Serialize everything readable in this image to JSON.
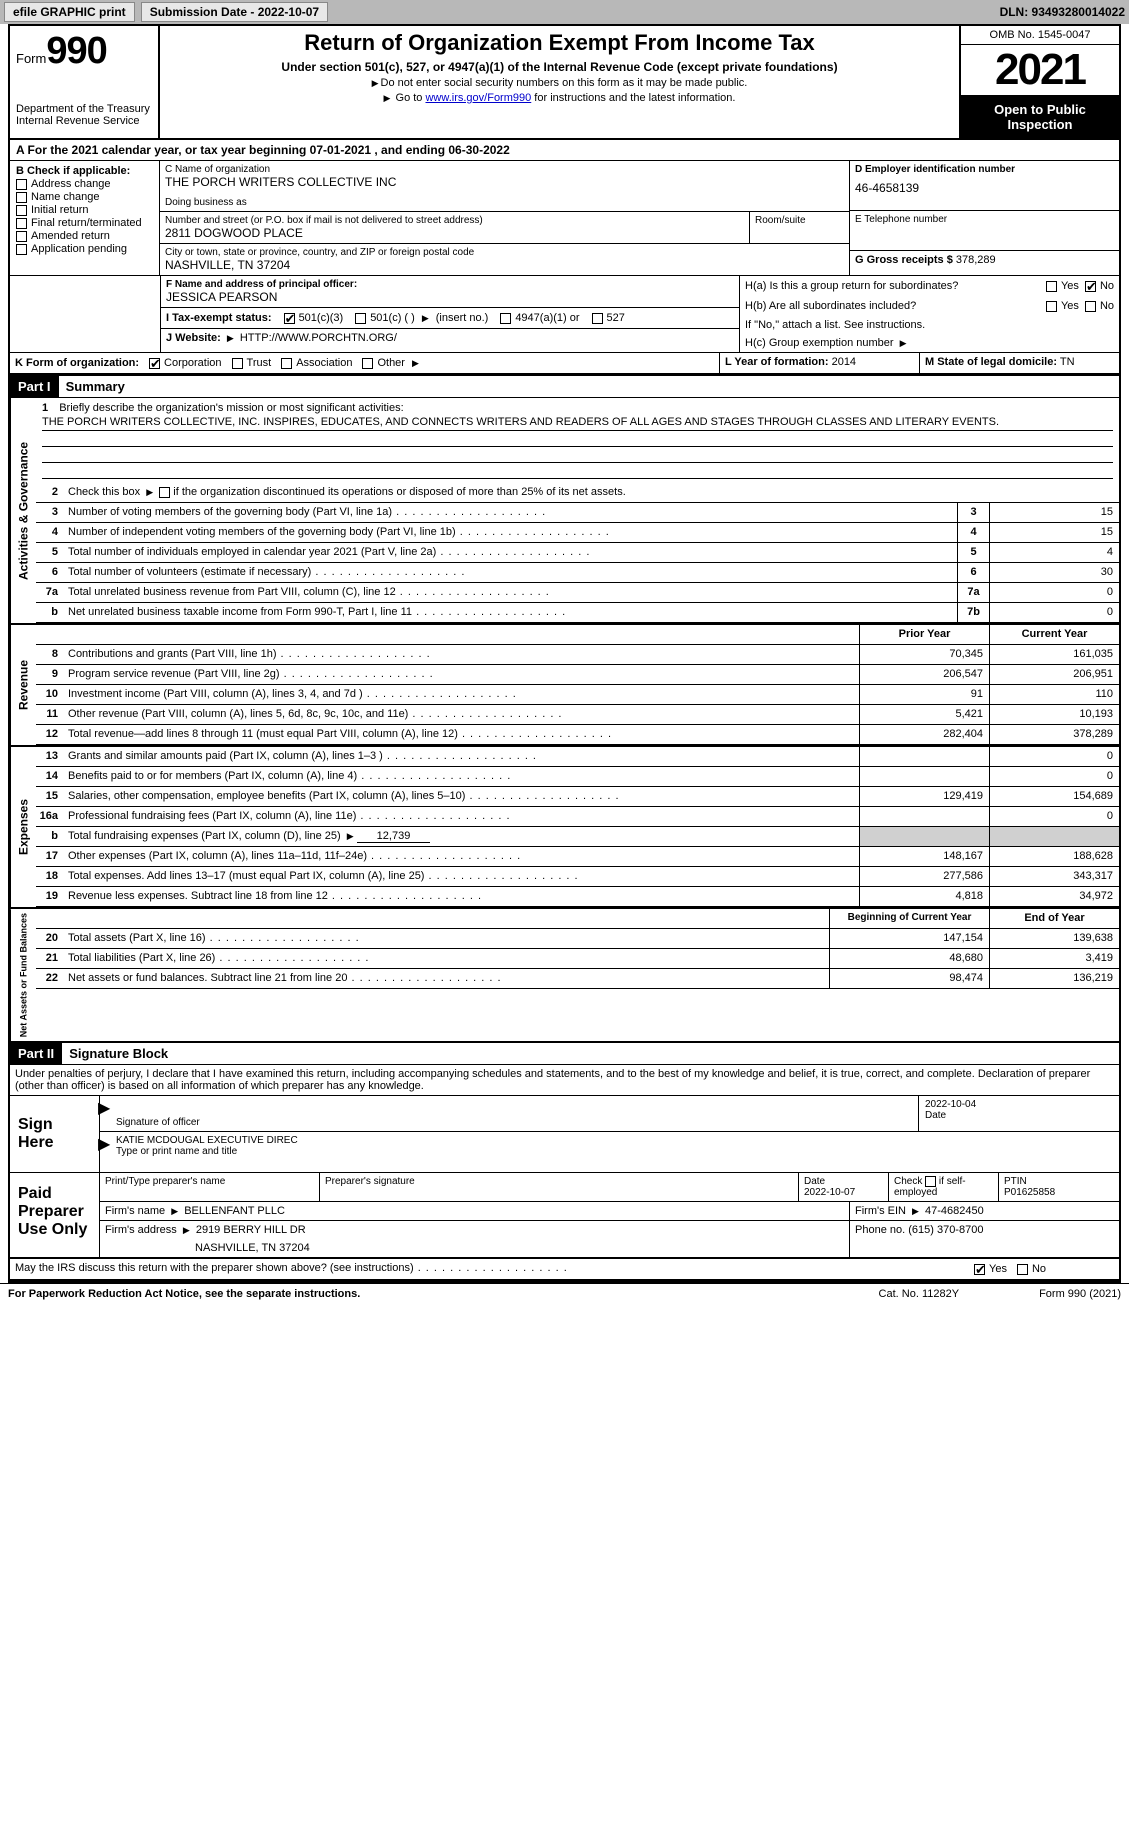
{
  "top_bar": {
    "efile": "efile GRAPHIC print",
    "submission": "Submission Date - 2022-10-07",
    "dln": "DLN: 93493280014022"
  },
  "header": {
    "form_label": "Form",
    "form_num": "990",
    "dept": "Department of the Treasury Internal Revenue Service",
    "title": "Return of Organization Exempt From Income Tax",
    "subtitle": "Under section 501(c), 527, or 4947(a)(1) of the Internal Revenue Code (except private foundations)",
    "note1": "Do not enter social security numbers on this form as it may be made public.",
    "note2_pre": "Go to ",
    "note2_link": "www.irs.gov/Form990",
    "note2_post": " for instructions and the latest information.",
    "omb": "OMB No. 1545-0047",
    "year": "2021",
    "inspect": "Open to Public Inspection"
  },
  "period": "A For the 2021 calendar year, or tax year beginning 07-01-2021    , and ending 06-30-2022",
  "box_b": {
    "label": "B Check if applicable:",
    "opts": [
      "Address change",
      "Name change",
      "Initial return",
      "Final return/terminated",
      "Amended return",
      "Application pending"
    ]
  },
  "box_c": {
    "name_label": "C Name of organization",
    "name": "THE PORCH WRITERS COLLECTIVE INC",
    "dba_label": "Doing business as",
    "addr_label": "Number and street (or P.O. box if mail is not delivered to street address)",
    "room_label": "Room/suite",
    "addr": "2811 DOGWOOD PLACE",
    "city_label": "City or town, state or province, country, and ZIP or foreign postal code",
    "city": "NASHVILLE, TN  37204"
  },
  "box_d": {
    "label": "D Employer identification number",
    "val": "46-4658139"
  },
  "box_e": {
    "label": "E Telephone number",
    "val": ""
  },
  "box_g": {
    "label": "G Gross receipts $",
    "val": "378,289"
  },
  "box_f": {
    "label": "F Name and address of principal officer:",
    "val": "JESSICA PEARSON"
  },
  "box_h": {
    "a": "H(a)  Is this a group return for subordinates?",
    "b": "H(b)  Are all subordinates included?",
    "b_note": "If \"No,\" attach a list. See instructions.",
    "c": "H(c)  Group exemption number",
    "yes": "Yes",
    "no": "No"
  },
  "box_i": {
    "label": "I   Tax-exempt status:",
    "o1": "501(c)(3)",
    "o2": "501(c) (  )",
    "o2b": "(insert no.)",
    "o3": "4947(a)(1) or",
    "o4": "527"
  },
  "box_j": {
    "label": "J   Website:",
    "val": "HTTP://WWW.PORCHTN.ORG/"
  },
  "box_k": {
    "label": "K Form of organization:",
    "o1": "Corporation",
    "o2": "Trust",
    "o3": "Association",
    "o4": "Other"
  },
  "box_l": {
    "label": "L Year of formation:",
    "val": "2014"
  },
  "box_m": {
    "label": "M State of legal domicile:",
    "val": "TN"
  },
  "part1": {
    "num": "Part I",
    "title": "Summary"
  },
  "mission": {
    "num": "1",
    "label": "Briefly describe the organization's mission or most significant activities:",
    "text": "THE PORCH WRITERS COLLECTIVE, INC. INSPIRES, EDUCATES, AND CONNECTS WRITERS AND READERS OF ALL AGES AND STAGES THROUGH CLASSES AND LITERARY EVENTS."
  },
  "line2": {
    "num": "2",
    "text": "Check this box",
    "text2": " if the organization discontinued its operations or disposed of more than 25% of its net assets."
  },
  "sections": {
    "gov_label": "Activities & Governance",
    "rev_label": "Revenue",
    "exp_label": "Expenses",
    "net_label": "Net Assets or Fund Balances"
  },
  "gov_lines": [
    {
      "n": "3",
      "d": "Number of voting members of the governing body (Part VI, line 1a)",
      "box": "3",
      "cur": "15"
    },
    {
      "n": "4",
      "d": "Number of independent voting members of the governing body (Part VI, line 1b)",
      "box": "4",
      "cur": "15"
    },
    {
      "n": "5",
      "d": "Total number of individuals employed in calendar year 2021 (Part V, line 2a)",
      "box": "5",
      "cur": "4"
    },
    {
      "n": "6",
      "d": "Total number of volunteers (estimate if necessary)",
      "box": "6",
      "cur": "30"
    },
    {
      "n": "7a",
      "d": "Total unrelated business revenue from Part VIII, column (C), line 12",
      "box": "7a",
      "cur": "0"
    },
    {
      "n": "b",
      "d": "Net unrelated business taxable income from Form 990-T, Part I, line 11",
      "box": "7b",
      "cur": "0"
    }
  ],
  "col_headers": {
    "prior": "Prior Year",
    "current": "Current Year"
  },
  "rev_lines": [
    {
      "n": "8",
      "d": "Contributions and grants (Part VIII, line 1h)",
      "p": "70,345",
      "c": "161,035"
    },
    {
      "n": "9",
      "d": "Program service revenue (Part VIII, line 2g)",
      "p": "206,547",
      "c": "206,951"
    },
    {
      "n": "10",
      "d": "Investment income (Part VIII, column (A), lines 3, 4, and 7d )",
      "p": "91",
      "c": "110"
    },
    {
      "n": "11",
      "d": "Other revenue (Part VIII, column (A), lines 5, 6d, 8c, 9c, 10c, and 11e)",
      "p": "5,421",
      "c": "10,193"
    },
    {
      "n": "12",
      "d": "Total revenue—add lines 8 through 11 (must equal Part VIII, column (A), line 12)",
      "p": "282,404",
      "c": "378,289"
    }
  ],
  "exp_lines": [
    {
      "n": "13",
      "d": "Grants and similar amounts paid (Part IX, column (A), lines 1–3 )",
      "p": "",
      "c": "0"
    },
    {
      "n": "14",
      "d": "Benefits paid to or for members (Part IX, column (A), line 4)",
      "p": "",
      "c": "0"
    },
    {
      "n": "15",
      "d": "Salaries, other compensation, employee benefits (Part IX, column (A), lines 5–10)",
      "p": "129,419",
      "c": "154,689"
    },
    {
      "n": "16a",
      "d": "Professional fundraising fees (Part IX, column (A), line 11e)",
      "p": "",
      "c": "0"
    }
  ],
  "line16b": {
    "n": "b",
    "d": "Total fundraising expenses (Part IX, column (D), line 25)",
    "val": "12,739"
  },
  "exp_lines2": [
    {
      "n": "17",
      "d": "Other expenses (Part IX, column (A), lines 11a–11d, 11f–24e)",
      "p": "148,167",
      "c": "188,628"
    },
    {
      "n": "18",
      "d": "Total expenses. Add lines 13–17 (must equal Part IX, column (A), line 25)",
      "p": "277,586",
      "c": "343,317"
    },
    {
      "n": "19",
      "d": "Revenue less expenses. Subtract line 18 from line 12",
      "p": "4,818",
      "c": "34,972"
    }
  ],
  "net_headers": {
    "begin": "Beginning of Current Year",
    "end": "End of Year"
  },
  "net_lines": [
    {
      "n": "20",
      "d": "Total assets (Part X, line 16)",
      "p": "147,154",
      "c": "139,638"
    },
    {
      "n": "21",
      "d": "Total liabilities (Part X, line 26)",
      "p": "48,680",
      "c": "3,419"
    },
    {
      "n": "22",
      "d": "Net assets or fund balances. Subtract line 21 from line 20",
      "p": "98,474",
      "c": "136,219"
    }
  ],
  "part2": {
    "num": "Part II",
    "title": "Signature Block"
  },
  "penalty": "Under penalties of perjury, I declare that I have examined this return, including accompanying schedules and statements, and to the best of my knowledge and belief, it is true, correct, and complete. Declaration of preparer (other than officer) is based on all information of which preparer has any knowledge.",
  "sign": {
    "label": "Sign Here",
    "sig_label": "Signature of officer",
    "date": "2022-10-04",
    "date_label": "Date",
    "name": "KATIE MCDOUGAL  EXECUTIVE DIREC",
    "name_label": "Type or print name and title"
  },
  "preparer": {
    "label": "Paid Preparer Use Only",
    "h1": "Print/Type preparer's name",
    "h2": "Preparer's signature",
    "h3": "Date",
    "h3v": "2022-10-07",
    "h4": "Check",
    "h4b": "if self-employed",
    "h5": "PTIN",
    "h5v": "P01625858",
    "firm_label": "Firm's name",
    "firm": "BELLENFANT PLLC",
    "ein_label": "Firm's EIN",
    "ein": "47-4682450",
    "addr_label": "Firm's address",
    "addr": "2919 BERRY HILL DR",
    "addr2": "NASHVILLE, TN  37204",
    "phone_label": "Phone no.",
    "phone": "(615) 370-8700"
  },
  "discuss": {
    "text": "May the IRS discuss this return with the preparer shown above? (see instructions)",
    "yes": "Yes",
    "no": "No"
  },
  "footer": {
    "left": "For Paperwork Reduction Act Notice, see the separate instructions.",
    "mid": "Cat. No. 11282Y",
    "right": "Form 990 (2021)"
  }
}
